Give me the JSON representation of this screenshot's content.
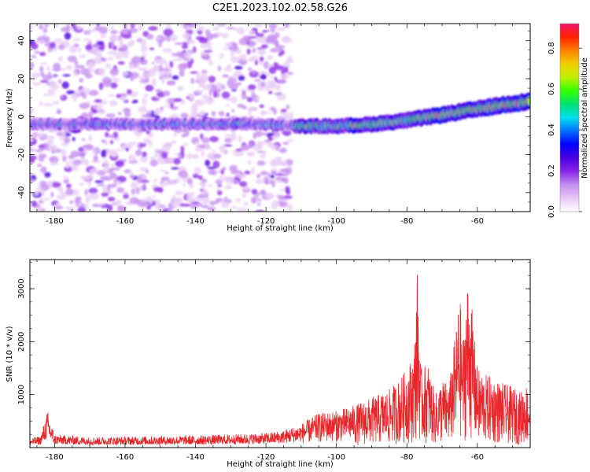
{
  "title": "C2E1.2023.102.02.58.G26",
  "colors": {
    "snr_line": "#e8262a",
    "axis": "#000000",
    "colormap": [
      "#ffffff",
      "#e7c8f5",
      "#c48ef0",
      "#8a28e8",
      "#4a00e0",
      "#0000ff",
      "#0070ff",
      "#00e0f0",
      "#00e070",
      "#30ff00",
      "#c0f000",
      "#f0d000",
      "#ff8000",
      "#ff2000",
      "#f0146a"
    ]
  },
  "chart_data": [
    {
      "type": "heatmap",
      "title": "",
      "xlabel": "Height of straight line (km)",
      "ylabel": "Frequency (Hz)",
      "xlim": [
        -187,
        -45
      ],
      "ylim": [
        -50,
        49
      ],
      "xticks": [
        -180,
        -160,
        -140,
        -120,
        -100,
        -80,
        -60
      ],
      "yticks": [
        -40,
        -20,
        0,
        20,
        40
      ],
      "colorbar": {
        "label": "Normalized spectral amplitude",
        "range": [
          0,
          0.92
        ],
        "ticks": [
          0.0,
          0.2,
          0.4,
          0.6,
          0.8
        ]
      },
      "ridge": {
        "description_points_x": [
          -187,
          -120,
          -110,
          -100,
          -90,
          -80,
          -70,
          -60,
          -50,
          -45
        ],
        "description_points_y": [
          -4,
          -4,
          -5,
          -5,
          -4,
          -2,
          1,
          4,
          7,
          8
        ]
      },
      "noise_region_x": [
        -187,
        -113
      ]
    },
    {
      "type": "line",
      "title": "",
      "xlabel": "Height of straight line (km)",
      "ylabel": "SNR (10 * v/v)",
      "xlim": [
        -187,
        -45
      ],
      "ylim": [
        0,
        3550
      ],
      "xticks": [
        -180,
        -160,
        -140,
        -120,
        -100,
        -80,
        -60
      ],
      "yticks": [
        1000,
        2000,
        3000
      ],
      "series": [
        {
          "envelope_x": [
            -187,
            -184,
            -182,
            -180,
            -170,
            -160,
            -150,
            -140,
            -130,
            -120,
            -115,
            -110,
            -105,
            -100,
            -95,
            -90,
            -85,
            -82,
            -80,
            -78,
            -77,
            -76,
            -74,
            -72,
            -70,
            -68,
            -66,
            -65,
            -64,
            -63,
            -62,
            -60,
            -58,
            -55,
            -52,
            -50,
            -48,
            -46,
            -45
          ],
          "envelope_y": [
            180,
            220,
            700,
            250,
            200,
            210,
            220,
            230,
            250,
            280,
            330,
            450,
            650,
            700,
            800,
            950,
            1100,
            1300,
            1500,
            1800,
            3400,
            1500,
            1600,
            1000,
            1300,
            1200,
            2300,
            2900,
            2000,
            3200,
            3000,
            1500,
            1400,
            1300,
            1200,
            1150,
            1050,
            1200,
            1100
          ]
        }
      ]
    }
  ]
}
